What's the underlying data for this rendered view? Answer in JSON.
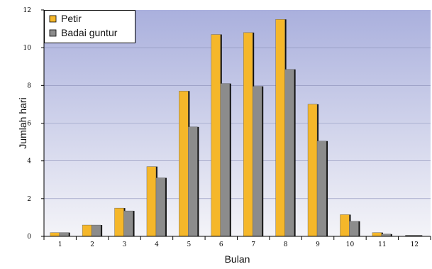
{
  "chart_data": {
    "type": "bar",
    "categories": [
      "1",
      "2",
      "3",
      "4",
      "5",
      "6",
      "7",
      "8",
      "9",
      "10",
      "11",
      "12"
    ],
    "series": [
      {
        "name": "Petir",
        "values": [
          0.2,
          0.6,
          1.5,
          3.7,
          7.7,
          10.7,
          10.8,
          11.5,
          7.0,
          1.15,
          0.2,
          0.0
        ],
        "color": "#f5b72a"
      },
      {
        "name": "Badai guntur",
        "values": [
          0.2,
          0.6,
          1.35,
          3.1,
          5.8,
          8.1,
          7.95,
          8.85,
          5.05,
          0.8,
          0.12,
          0.0
        ],
        "color": "#8c8c8c"
      }
    ],
    "xlabel": "Bulan",
    "ylabel": "Jumlah hari",
    "ylim": [
      0,
      12
    ],
    "yticks": [
      "0",
      "2",
      "4",
      "6",
      "8",
      "10",
      "12"
    ],
    "grid": true,
    "legend_position": "top-left",
    "background_gradient": [
      "#aab0dd",
      "#f4f4f8"
    ]
  }
}
